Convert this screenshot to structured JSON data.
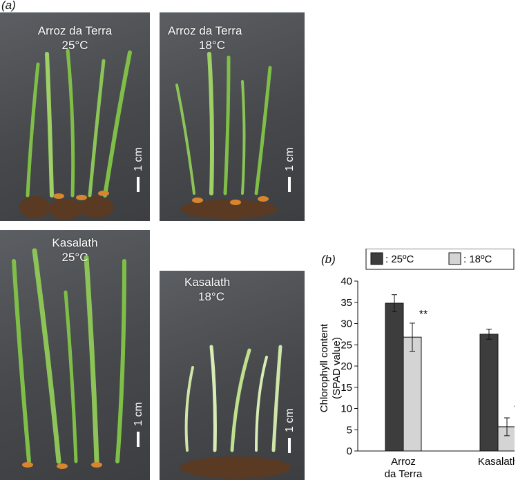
{
  "panel_a_label": "(a)",
  "panel_b_label": "(b)",
  "photos": [
    {
      "caption_line1": "Arroz da Terra",
      "caption_line2": "25°C",
      "scale": "1 cm"
    },
    {
      "caption_line1": "Arroz da Terra",
      "caption_line2": "18°C",
      "scale": "1 cm"
    },
    {
      "caption_line1": "Kasalath",
      "caption_line2": "25°C",
      "scale": "1 cm"
    },
    {
      "caption_line1": "Kasalath",
      "caption_line2": "18°C",
      "scale": "1 cm"
    }
  ],
  "chart_data": {
    "type": "bar",
    "ylabel_line1": "Chlorophyll content",
    "ylabel_line2": "(SPAD value)",
    "ylim": [
      0,
      40
    ],
    "yticks": [
      0,
      5,
      10,
      15,
      20,
      25,
      30,
      35,
      40
    ],
    "categories": [
      [
        "Arroz",
        "da Terra"
      ],
      [
        "Kasalath"
      ]
    ],
    "series": [
      {
        "name": ": 25ºC",
        "color": "#3d3d3d",
        "values": [
          34.8,
          27.5
        ],
        "errors": [
          2.0,
          1.2
        ],
        "sig": [
          "",
          ""
        ]
      },
      {
        "name": ": 18ºC",
        "color": "#d4d4d4",
        "values": [
          26.8,
          5.7
        ],
        "errors": [
          3.3,
          2.1
        ],
        "sig": [
          "**",
          "**"
        ]
      }
    ],
    "legend_position": "top"
  }
}
